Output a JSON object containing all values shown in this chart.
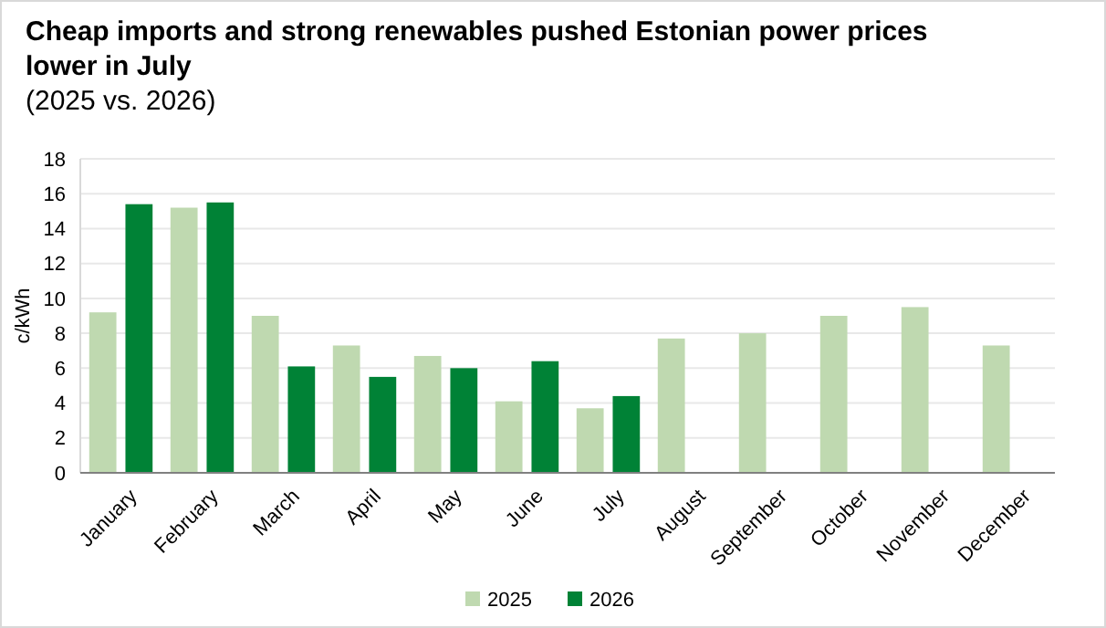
{
  "chart_data": {
    "type": "bar",
    "title": "Cheap imports and strong renewables pushed Estonian power prices lower in July",
    "subtitle": "(2025 vs. 2026)",
    "ylabel": "c/kWh",
    "categories": [
      "January",
      "February",
      "March",
      "April",
      "May",
      "June",
      "July",
      "August",
      "September",
      "October",
      "November",
      "December"
    ],
    "series": [
      {
        "name": "2025",
        "color": "#bfd9b0",
        "values": [
          9.2,
          15.2,
          9.0,
          7.3,
          6.7,
          4.1,
          3.7,
          7.7,
          8.0,
          9.0,
          9.5,
          7.3
        ]
      },
      {
        "name": "2026",
        "color": "#008236",
        "values": [
          15.4,
          15.5,
          6.1,
          5.5,
          6.0,
          6.4,
          4.4,
          null,
          null,
          null,
          null,
          null
        ]
      }
    ],
    "ylim": [
      0,
      18
    ],
    "yticks": [
      0,
      2,
      4,
      6,
      8,
      10,
      12,
      14,
      16,
      18
    ],
    "grid": "y",
    "legend": "bottom"
  }
}
